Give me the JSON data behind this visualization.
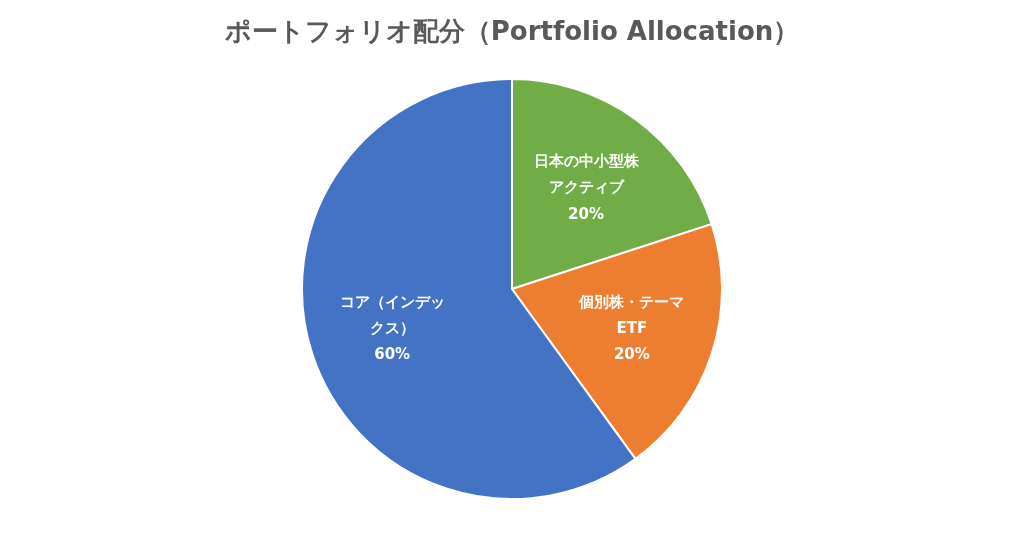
{
  "chart_data": {
    "type": "pie",
    "title": "ポートフォリオ配分（Portfolio Allocation）",
    "categories": [
      "日本の中小型株アクティブ",
      "個別株・テーマETF",
      "コア（インデックス）"
    ],
    "values": [
      20,
      20,
      60
    ],
    "colors": [
      "#70ad47",
      "#ed7d31",
      "#4472c4"
    ],
    "value_labels": [
      "20%",
      "20%",
      "60%"
    ]
  }
}
